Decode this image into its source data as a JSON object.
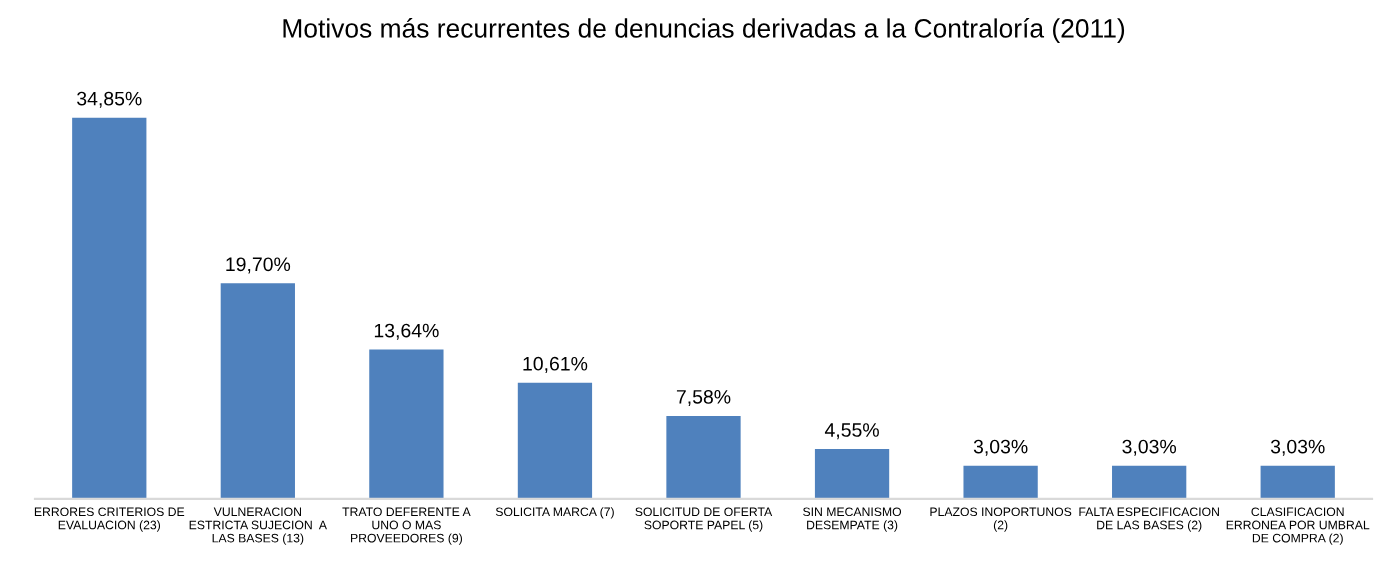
{
  "chart_data": {
    "type": "bar",
    "title": "Motivos más recurrentes de denuncias derivadas a la Contraloría (2011)",
    "categories": [
      "ERRORES CRITERIOS DE\nEVALUACION (23)",
      "VULNERACION\nESTRICTA SUJECION  A\nLAS BASES (13)",
      "TRATO DEFERENTE A\nUNO O MAS\nPROVEEDORES (9)",
      "SOLICITA MARCA (7)",
      "SOLICITUD DE OFERTA\nSOPORTE PAPEL (5)",
      "SIN MECANISMO\nDESEMPATE (3)",
      "PLAZOS INOPORTUNOS\n(2)",
      "FALTA ESPECIFICACION\nDE LAS BASES (2)",
      "CLASIFICACION\nERRONEA POR UMBRAL\nDE COMPRA (2)"
    ],
    "values": [
      34.85,
      19.7,
      13.64,
      10.61,
      7.58,
      4.55,
      3.03,
      3.03,
      3.03
    ],
    "value_labels": [
      "34,85%",
      "19,70%",
      "13,64%",
      "10,61%",
      "7,58%",
      "4,55%",
      "3,03%",
      "3,03%",
      "3,03%"
    ],
    "color": "#4f81bd",
    "tick_labels": "x",
    "grid": false,
    "legend": false
  }
}
